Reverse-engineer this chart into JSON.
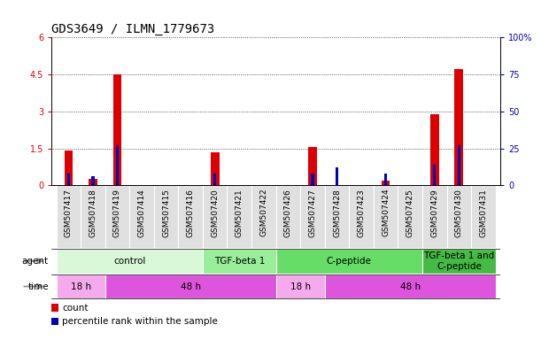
{
  "title": "GDS3649 / ILMN_1779673",
  "samples": [
    "GSM507417",
    "GSM507418",
    "GSM507419",
    "GSM507414",
    "GSM507415",
    "GSM507416",
    "GSM507420",
    "GSM507421",
    "GSM507422",
    "GSM507426",
    "GSM507427",
    "GSM507428",
    "GSM507423",
    "GSM507424",
    "GSM507425",
    "GSM507429",
    "GSM507430",
    "GSM507431"
  ],
  "count_values": [
    1.4,
    0.25,
    4.5,
    0,
    0,
    0,
    1.35,
    0,
    0,
    0,
    1.55,
    0,
    0,
    0.2,
    0,
    2.9,
    4.7,
    0
  ],
  "percentile_values": [
    8,
    6,
    27,
    0,
    0,
    0,
    8,
    0,
    0,
    0,
    8,
    12,
    0,
    8,
    0,
    14,
    27,
    0
  ],
  "count_color": "#dd0000",
  "percentile_color": "#0000bb",
  "ylim_left": [
    0,
    6
  ],
  "ylim_right": [
    0,
    100
  ],
  "yticks_left": [
    0,
    1.5,
    3,
    4.5,
    6
  ],
  "yticks_right": [
    0,
    25,
    50,
    75,
    100
  ],
  "agent_groups": [
    {
      "label": "control",
      "start": 0,
      "end": 6,
      "color": "#d8f8d8"
    },
    {
      "label": "TGF-beta 1",
      "start": 6,
      "end": 9,
      "color": "#99ee99"
    },
    {
      "label": "C-peptide",
      "start": 9,
      "end": 15,
      "color": "#66dd66"
    },
    {
      "label": "TGF-beta 1 and\nC-peptide",
      "start": 15,
      "end": 18,
      "color": "#44bb44"
    }
  ],
  "time_groups": [
    {
      "label": "18 h",
      "start": 0,
      "end": 2,
      "color": "#f5aaee"
    },
    {
      "label": "48 h",
      "start": 2,
      "end": 9,
      "color": "#dd55dd"
    },
    {
      "label": "18 h",
      "start": 9,
      "end": 11,
      "color": "#f5aaee"
    },
    {
      "label": "48 h",
      "start": 11,
      "end": 18,
      "color": "#dd55dd"
    }
  ],
  "bar_width": 0.35,
  "background_color": "#ffffff",
  "label_fontsize": 7.5,
  "tick_fontsize": 7,
  "title_fontsize": 10,
  "sample_fontsize": 6.5
}
